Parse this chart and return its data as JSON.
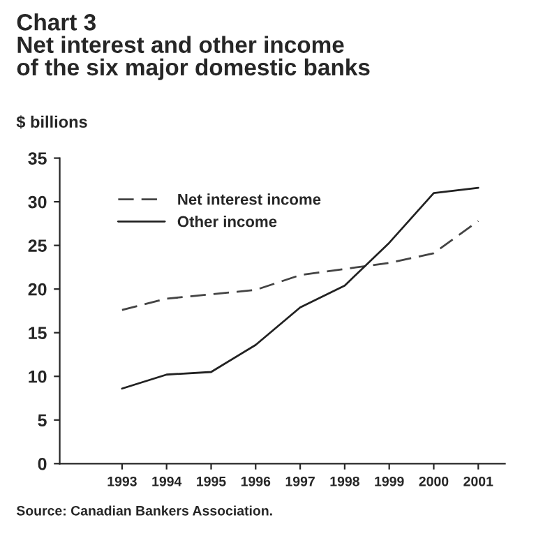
{
  "chart_data": {
    "type": "line",
    "title": "Chart 3\nNet interest and other income\nof the six major domestic banks",
    "ylabel": "$ billions",
    "categories": [
      "1993",
      "1994",
      "1995",
      "1996",
      "1997",
      "1998",
      "1999",
      "2000",
      "2001"
    ],
    "series": [
      {
        "name": "Net interest income",
        "color": "#444444",
        "line_style": "dashed",
        "values": [
          17.6,
          18.9,
          19.4,
          19.9,
          21.6,
          22.3,
          23.0,
          24.1,
          27.8
        ]
      },
      {
        "name": "Other income",
        "color": "#222222",
        "line_style": "solid",
        "values": [
          8.6,
          10.2,
          10.5,
          13.6,
          17.9,
          20.4,
          25.3,
          31.0,
          31.6
        ]
      }
    ],
    "ylim": [
      0,
      35
    ],
    "yticks": [
      0,
      5,
      10,
      15,
      20,
      25,
      30,
      35
    ],
    "grid": false,
    "legend": "top left",
    "marker": "none",
    "annotations": [
      "Source: Canadian Bankers Association."
    ]
  }
}
